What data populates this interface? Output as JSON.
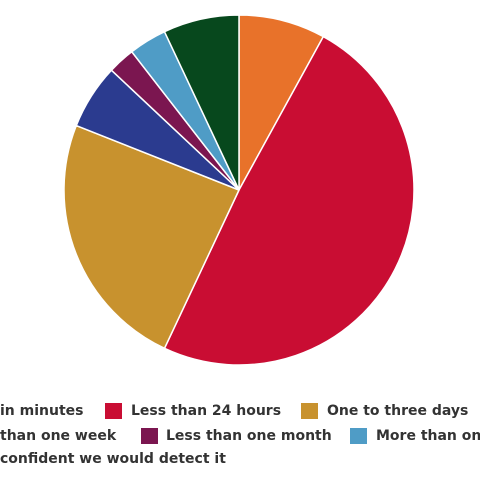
{
  "chart_data": {
    "type": "pie",
    "categories": [
      "in minutes",
      "Less than 24 hours",
      "One to three days",
      "than one week",
      "Less than one month",
      "More than one",
      "confident we would detect it"
    ],
    "values": [
      8,
      49,
      24,
      6,
      2.5,
      3.5,
      7
    ],
    "colors": [
      "#e8722a",
      "#c90d33",
      "#c8922e",
      "#2b3b8f",
      "#7b1650",
      "#4f9cc6",
      "#07481d"
    ]
  }
}
